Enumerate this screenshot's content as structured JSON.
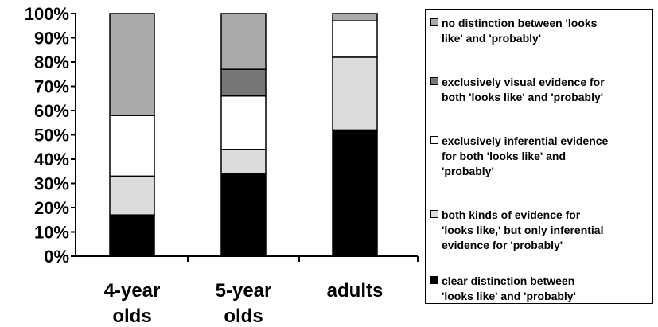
{
  "chart_data": {
    "type": "bar",
    "stacked": true,
    "categories": [
      "4-year olds",
      "5-year olds",
      "adults"
    ],
    "category_lines": [
      [
        "4-year",
        "olds"
      ],
      [
        "5-year",
        "olds"
      ],
      [
        "adults"
      ]
    ],
    "ylim": [
      0,
      100
    ],
    "y_ticks": [
      "0%",
      "10%",
      "20%",
      "30%",
      "40%",
      "50%",
      "60%",
      "70%",
      "80%",
      "90%",
      "100%"
    ],
    "grid": false,
    "legend_position": "right",
    "series": [
      {
        "name": "clear distinction between 'looks like' and 'probably'",
        "color": "#000000",
        "values": [
          17,
          34,
          52
        ]
      },
      {
        "name": "both kinds of evidence for 'looks like,' but only inferential evidence for 'probably'",
        "color": "#dcdcdc",
        "values": [
          16,
          10,
          30
        ]
      },
      {
        "name": "exclusively inferential evidence for both 'looks like' and 'probably'",
        "color": "#ffffff",
        "values": [
          25,
          22,
          15
        ]
      },
      {
        "name": "exclusively visual evidence for both 'looks like' and 'probably'",
        "color": "#777777",
        "values": [
          0,
          11,
          0
        ]
      },
      {
        "name": "no distinction between 'looks like' and 'probably'",
        "color": "#aaaaaa",
        "values": [
          42,
          23,
          3
        ]
      }
    ]
  },
  "legend": {
    "items": [
      {
        "lines": [
          "no distinction between 'looks",
          "like' and 'probably'"
        ],
        "color": "#aaaaaa"
      },
      {
        "lines": [
          "exclusively visual evidence for",
          "both 'looks like' and 'probably'"
        ],
        "color": "#777777"
      },
      {
        "lines": [
          "exclusively inferential evidence",
          "for both 'looks like' and",
          "'probably'"
        ],
        "color": "#ffffff"
      },
      {
        "lines": [
          "both kinds of evidence for",
          "'looks like,' but only inferential",
          "evidence for 'probably'"
        ],
        "color": "#dcdcdc"
      },
      {
        "lines": [
          "clear distinction between",
          "'looks like' and 'probably'"
        ],
        "color": "#000000"
      }
    ]
  }
}
